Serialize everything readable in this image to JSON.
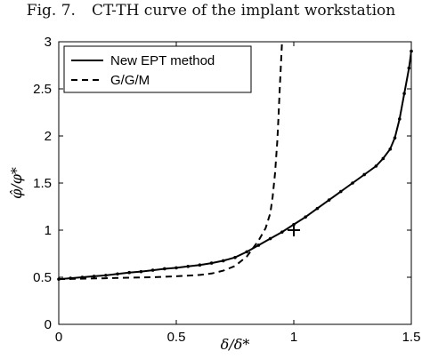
{
  "caption": {
    "number": "Fig. 7.",
    "text": "CT-TH curve of the implant workstation"
  },
  "chart_data": {
    "type": "line",
    "xlabel": "δ/δ*",
    "ylabel": "φ̂/φ*",
    "xlim": [
      0,
      1.5
    ],
    "ylim": [
      0,
      3
    ],
    "xticks": [
      0,
      0.5,
      1,
      1.5
    ],
    "xtick_labels": [
      "0",
      "0.5",
      "1",
      "1.5"
    ],
    "yticks": [
      0,
      0.5,
      1,
      1.5,
      2,
      2.5,
      3
    ],
    "ytick_labels": [
      "0",
      "0.5",
      "1",
      "1.5",
      "2",
      "2.5",
      "3"
    ],
    "grid": false,
    "legend_position": "top-left",
    "series": [
      {
        "name": "New EPT method",
        "style": "solid",
        "color": "#000000",
        "markers": true,
        "x": [
          0,
          0.05,
          0.1,
          0.15,
          0.2,
          0.25,
          0.3,
          0.35,
          0.4,
          0.45,
          0.5,
          0.55,
          0.6,
          0.65,
          0.7,
          0.75,
          0.8,
          0.85,
          0.9,
          0.95,
          1.0,
          1.05,
          1.1,
          1.15,
          1.2,
          1.25,
          1.3,
          1.35,
          1.38,
          1.41,
          1.43,
          1.45,
          1.47,
          1.49,
          1.5
        ],
        "y": [
          0.48,
          0.49,
          0.5,
          0.51,
          0.52,
          0.535,
          0.55,
          0.56,
          0.575,
          0.59,
          0.6,
          0.615,
          0.63,
          0.65,
          0.675,
          0.71,
          0.77,
          0.84,
          0.91,
          0.98,
          1.06,
          1.14,
          1.23,
          1.32,
          1.41,
          1.5,
          1.59,
          1.68,
          1.76,
          1.86,
          1.98,
          2.18,
          2.45,
          2.72,
          2.9
        ]
      },
      {
        "name": "G/G/M",
        "style": "dashed",
        "color": "#000000",
        "markers": false,
        "x": [
          0,
          0.1,
          0.2,
          0.3,
          0.4,
          0.5,
          0.6,
          0.65,
          0.7,
          0.75,
          0.8,
          0.85,
          0.88,
          0.9,
          0.91,
          0.92,
          0.93,
          0.935,
          0.94,
          0.945,
          0.95
        ],
        "y": [
          0.48,
          0.485,
          0.49,
          0.495,
          0.5,
          0.51,
          0.525,
          0.54,
          0.57,
          0.62,
          0.72,
          0.89,
          1.02,
          1.18,
          1.35,
          1.6,
          1.95,
          2.2,
          2.5,
          2.75,
          3.0
        ]
      }
    ],
    "annotations": [
      {
        "type": "plus-marker",
        "x": 1.0,
        "y": 1.0
      }
    ]
  }
}
